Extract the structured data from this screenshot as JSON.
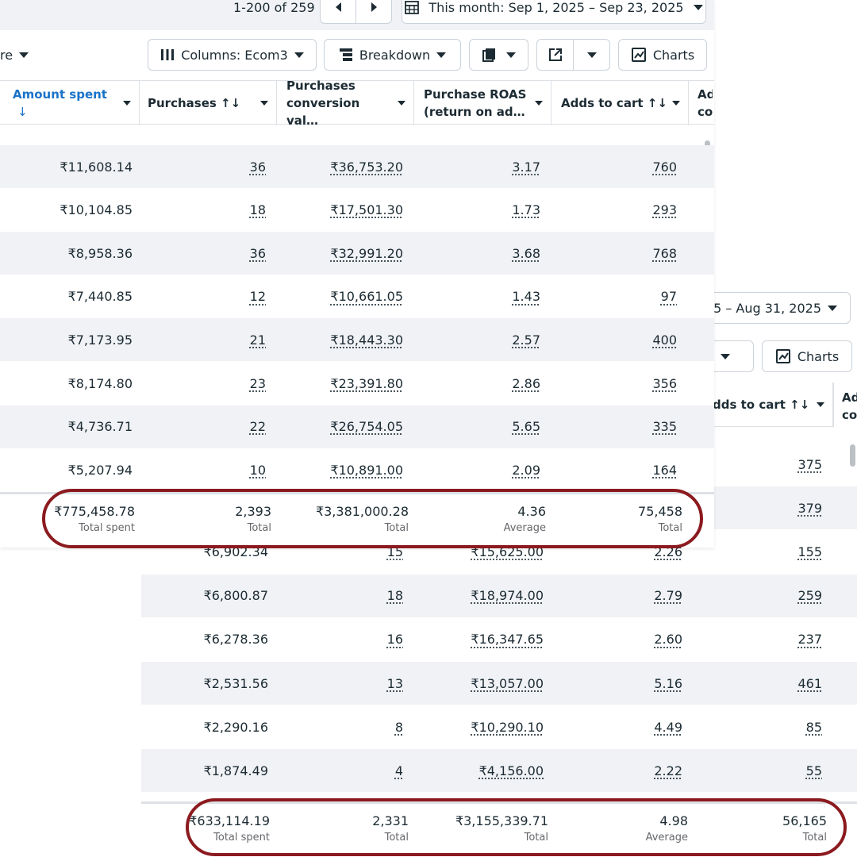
{
  "top": {
    "pagination": "1-200 of 259",
    "date_range": "This month: Sep 1, 2025 – Sep 23, 2025",
    "cut_label": "re",
    "toolbar": {
      "columns": "Columns: Ecom3",
      "breakdown": "Breakdown",
      "charts": "Charts"
    },
    "headers": [
      "Amount spent",
      "Purchases",
      "Purchases conversion val…",
      "Purchase ROAS (return on ad…",
      "Adds to cart",
      "Ad co"
    ],
    "sort_arrow": "↓",
    "sortable_glyph": "↑↓",
    "rows": [
      [
        "₹11,608.14",
        "36",
        "₹36,753.20",
        "3.17",
        "760"
      ],
      [
        "₹10,104.85",
        "18",
        "₹17,501.30",
        "1.73",
        "293"
      ],
      [
        "₹8,958.36",
        "36",
        "₹32,991.20",
        "3.68",
        "768"
      ],
      [
        "₹7,440.85",
        "12",
        "₹10,661.05",
        "1.43",
        "97"
      ],
      [
        "₹7,173.95",
        "21",
        "₹18,443.30",
        "2.57",
        "400"
      ],
      [
        "₹8,174.80",
        "23",
        "₹23,391.80",
        "2.86",
        "356"
      ],
      [
        "₹4,736.71",
        "22",
        "₹26,754.05",
        "5.65",
        "335"
      ],
      [
        "₹5,207.94",
        "10",
        "₹10,891.00",
        "2.09",
        "164"
      ]
    ],
    "totals": [
      {
        "value": "₹775,458.78",
        "label": "Total spent"
      },
      {
        "value": "2,393",
        "label": "Total"
      },
      {
        "value": "₹3,381,000.28",
        "label": "Total"
      },
      {
        "value": "4.36",
        "label": "Average"
      },
      {
        "value": "75,458",
        "label": "Total"
      }
    ]
  },
  "bottom": {
    "date_range": "5 – Aug 31, 2025",
    "charts": "Charts",
    "header_adds": "dds to cart",
    "header_cut": "Ad co",
    "sortable_glyph": "↑↓",
    "rows": [
      [
        "",
        "",
        "",
        "",
        "375"
      ],
      [
        "",
        "",
        "",
        "",
        "379"
      ],
      [
        "₹6,902.34",
        "15",
        "₹15,625.00",
        "2.26",
        "155"
      ],
      [
        "₹6,800.87",
        "18",
        "₹18,974.00",
        "2.79",
        "259"
      ],
      [
        "₹6,278.36",
        "16",
        "₹16,347.65",
        "2.60",
        "237"
      ],
      [
        "₹2,531.56",
        "13",
        "₹13,057.00",
        "5.16",
        "461"
      ],
      [
        "₹2,290.16",
        "8",
        "₹10,290.10",
        "4.49",
        "85"
      ],
      [
        "₹1,874.49",
        "4",
        "₹4,156.00",
        "2.22",
        "55"
      ]
    ],
    "totals": [
      {
        "value": "₹633,114.19",
        "label": "Total spent"
      },
      {
        "value": "2,331",
        "label": "Total"
      },
      {
        "value": "₹3,155,339.71",
        "label": "Total"
      },
      {
        "value": "4.98",
        "label": "Average"
      },
      {
        "value": "56,165",
        "label": "Total"
      }
    ]
  },
  "colors": {
    "accent_blue": "#1a73c8",
    "highlight_ring": "#8b1a1f",
    "row_alt": "#f0f2f5"
  }
}
